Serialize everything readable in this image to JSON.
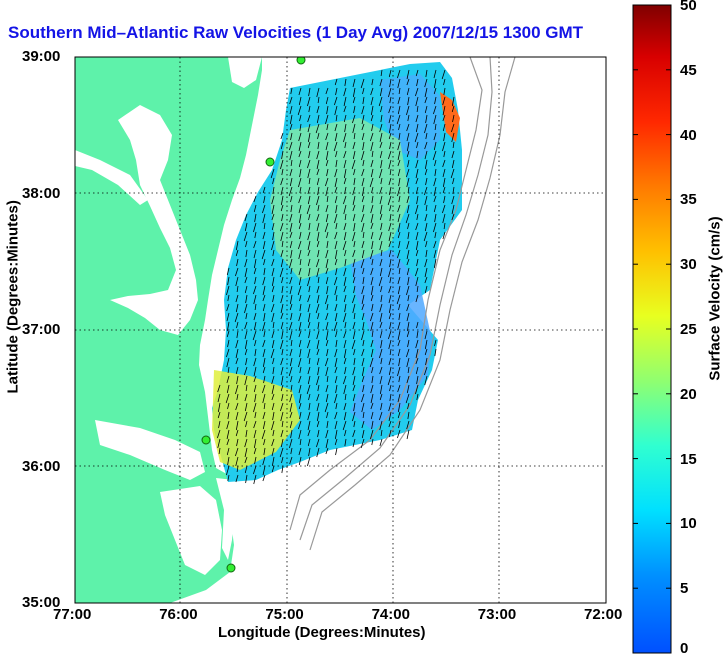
{
  "title": "Southern Mid–Atlantic Raw Velocities (1 Day Avg) 2007/12/15 1300 GMT",
  "xaxis": {
    "label": "Longitude (Degrees:Minutes)",
    "ticks": [
      "77:00",
      "76:00",
      "75:00",
      "74:00",
      "73:00",
      "72:00"
    ],
    "range": [
      -77,
      -72
    ]
  },
  "yaxis": {
    "label": "Latitude (Degrees:Minutes)",
    "ticks": [
      "39:00",
      "38:00",
      "37:00",
      "36:00",
      "35:00"
    ],
    "range": [
      35,
      39
    ]
  },
  "colorbar": {
    "label": "Surface Velocity (cm/s)",
    "ticks": [
      "50",
      "45",
      "40",
      "35",
      "30",
      "25",
      "20",
      "15",
      "10",
      "5",
      "0"
    ],
    "range": [
      0,
      50
    ]
  },
  "colors": {
    "land": "#5ef2aa",
    "water": "#ffffff",
    "title": "#1414e6",
    "site_marker": "#33ee33",
    "bathymetry": "#999999"
  },
  "sites": [
    "site-1",
    "site-2",
    "site-3",
    "site-4"
  ]
}
